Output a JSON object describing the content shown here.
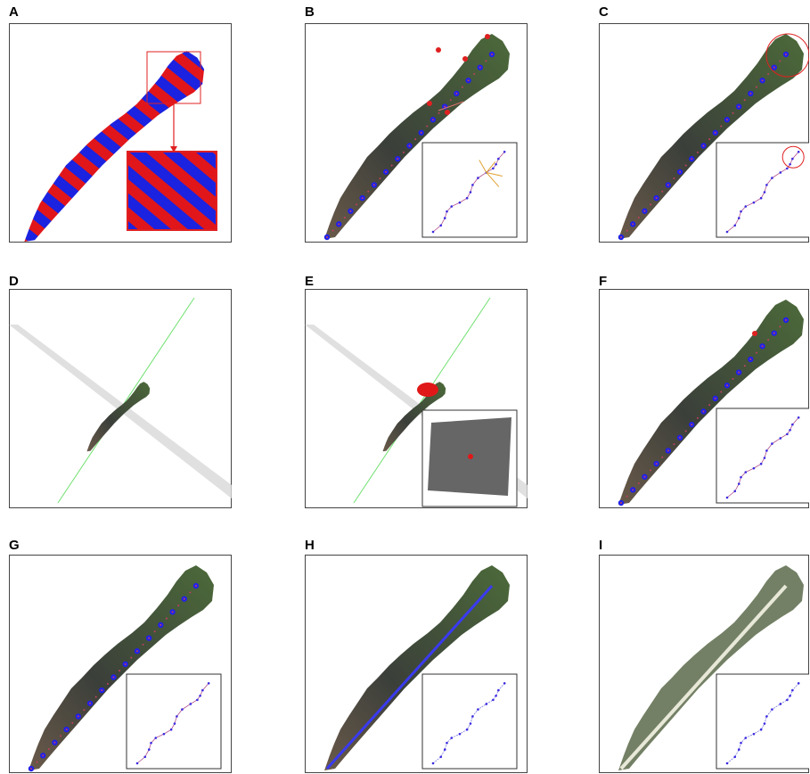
{
  "panels": [
    {
      "label": "A"
    },
    {
      "label": "B"
    },
    {
      "label": "C"
    },
    {
      "label": "D"
    },
    {
      "label": "E"
    },
    {
      "label": "F"
    },
    {
      "label": "G"
    },
    {
      "label": "H"
    },
    {
      "label": "I"
    }
  ]
}
